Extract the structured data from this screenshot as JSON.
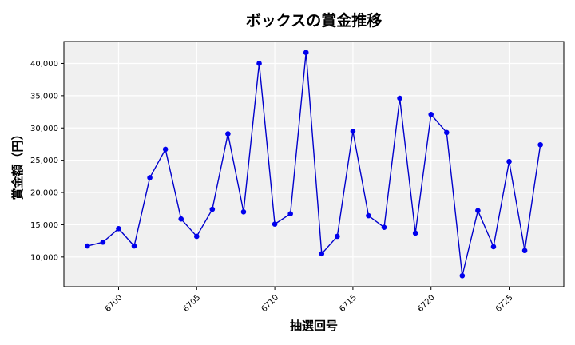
{
  "chart_data": {
    "type": "line",
    "title": "ボックスの賞金推移",
    "xlabel": "抽選回号",
    "ylabel": "賞金額（円）",
    "x": [
      6698,
      6699,
      6700,
      6701,
      6702,
      6703,
      6704,
      6705,
      6706,
      6707,
      6708,
      6709,
      6710,
      6711,
      6712,
      6713,
      6714,
      6715,
      6716,
      6717,
      6718,
      6719,
      6720,
      6721,
      6722,
      6723,
      6724,
      6725,
      6726,
      6727
    ],
    "series": [
      {
        "values": [
          11700,
          12300,
          14400,
          11700,
          22300,
          26700,
          15900,
          13200,
          17400,
          29100,
          17000,
          40000,
          15100,
          16700,
          41700,
          10500,
          13200,
          29500,
          16400,
          14600,
          34600,
          13700,
          32100,
          29300,
          7100,
          17200,
          11600,
          24800,
          11000,
          27400
        ]
      }
    ],
    "xticks": [
      "6700",
      "6705",
      "6710",
      "6715",
      "6720",
      "6725"
    ],
    "yticks": [
      "10,000",
      "15,000",
      "20,000",
      "25,000",
      "30,000",
      "35,000",
      "40,000"
    ],
    "xlim": [
      6696.5,
      6728.5
    ],
    "ylim": [
      5400,
      43400
    ],
    "grid": true,
    "line_color": "#0000cc",
    "marker_color": "#0000ee",
    "background_color": "#f0f0f0"
  }
}
